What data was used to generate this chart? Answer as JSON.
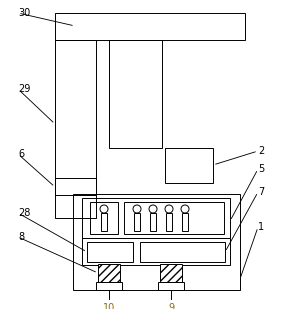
{
  "bg_color": "#ffffff",
  "line_color": "#000000",
  "lw": 0.7,
  "fig_width": 2.93,
  "fig_height": 3.09,
  "dpi": 100,
  "label_color": "#000000",
  "label_color_bottom": "#8B6914",
  "label_fontsize": 7.0
}
